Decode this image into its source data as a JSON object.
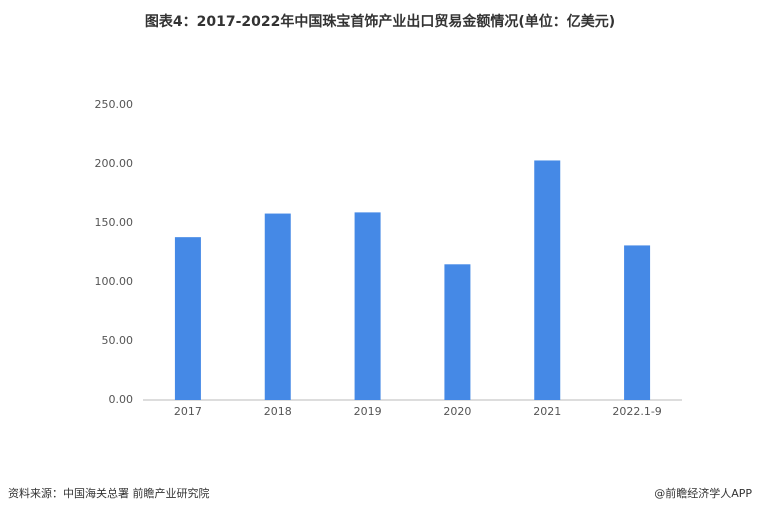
{
  "chart_data": {
    "type": "bar",
    "title": "图表4：2017-2022年中国珠宝首饰产业出口贸易金额情况(单位：亿美元)",
    "categories": [
      "2017",
      "2018",
      "2019",
      "2020",
      "2021",
      "2022.1-9"
    ],
    "values": [
      138,
      158,
      159,
      115,
      203,
      131
    ],
    "color": "#4589e6",
    "ylim": [
      0,
      250
    ],
    "yticks": [
      {
        "value": 0,
        "label": "0.00"
      },
      {
        "value": 50,
        "label": "50.00"
      },
      {
        "value": 100,
        "label": "100.00"
      },
      {
        "value": 150,
        "label": "150.00"
      },
      {
        "value": 200,
        "label": "200.00"
      },
      {
        "value": 250,
        "label": "250.00"
      }
    ],
    "grid": false,
    "source": "资料来源：中国海关总署 前瞻产业研究院",
    "credit": "@前瞻经济学人APP"
  }
}
